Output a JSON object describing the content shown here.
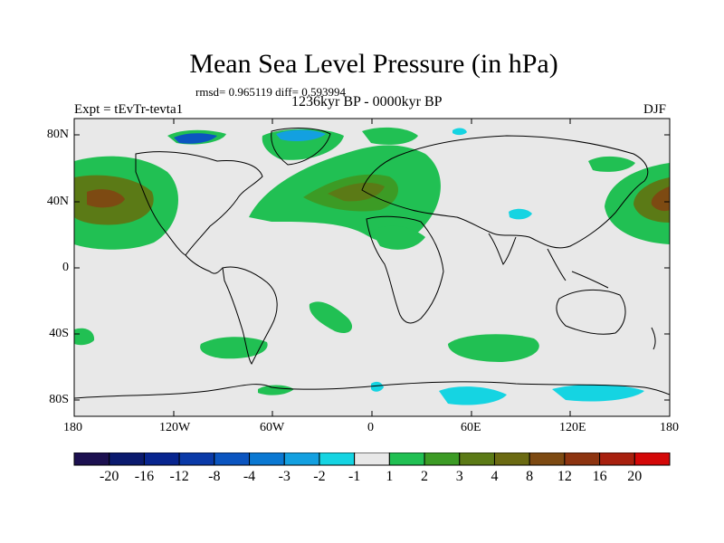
{
  "title": "Mean Sea Level Pressure (in hPa)",
  "stats": "rmsd= 0.965119 diff= 0.593994",
  "period": "1236kyr BP - 0000kyr BP",
  "experiment": "Expt = tEvTr-tevta1",
  "season": "DJF",
  "x_ticks": [
    "180",
    "120W",
    "60W",
    "0",
    "60E",
    "120E",
    "180"
  ],
  "y_ticks": [
    "80N",
    "40N",
    "0",
    "40S",
    "80S"
  ],
  "colorbar": {
    "labels": [
      "-20",
      "-16",
      "-12",
      "-8",
      "-4",
      "-3",
      "-2",
      "-1",
      "1",
      "2",
      "3",
      "4",
      "8",
      "12",
      "16",
      "20"
    ],
    "colors": [
      "#1c1050",
      "#0b1a6e",
      "#08258f",
      "#0a3aa8",
      "#0b55c0",
      "#0a78d2",
      "#13a0e0",
      "#15d4e2",
      "#e8e8e8",
      "#21c053",
      "#3c9b25",
      "#5b7a16",
      "#6b6a12",
      "#7d4a12",
      "#8d3410",
      "#a8200e",
      "#d40808"
    ]
  },
  "map": {
    "background_color": "#e8e8e8"
  }
}
